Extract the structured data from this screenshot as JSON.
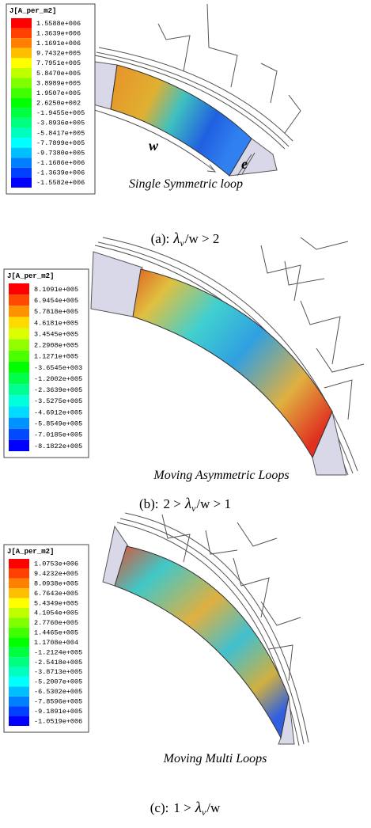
{
  "panels": [
    {
      "legend_title": "J[A_per_m2]",
      "legend_values": [
        "1.5588e+006",
        "1.3639e+006",
        "1.1691e+006",
        "9.7432e+005",
        "7.7951e+005",
        "5.8470e+005",
        "3.8989e+005",
        "1.9507e+005",
        "2.6250e+002",
        "-1.9455e+005",
        "-3.8936e+005",
        "-5.8417e+005",
        "-7.7899e+005",
        "-9.7380e+005",
        "-1.1686e+006",
        "-1.3639e+006",
        "-1.5582e+006"
      ],
      "annotations": [
        "w",
        "e"
      ],
      "label": "Single Symmetric loop",
      "caption": {
        "tag": "(a):",
        "symbol": "λ",
        "subscript": "v",
        "after": "/w > 2"
      }
    },
    {
      "legend_title": "J[A_per_m2]",
      "legend_values": [
        "8.1091e+005",
        "6.9454e+005",
        "5.7818e+005",
        "4.6181e+005",
        "3.4545e+005",
        "2.2908e+005",
        "1.1271e+005",
        "-3.6545e+003",
        "-1.2002e+005",
        "-2.3639e+005",
        "-3.5275e+005",
        "-4.6912e+005",
        "-5.8549e+005",
        "-7.0185e+005",
        "-8.1822e+005"
      ],
      "label": "Moving Asymmetric Loops",
      "caption": {
        "tag": "(b):",
        "before": "2 >",
        "symbol": "λ",
        "subscript": "v",
        "after": "/w > 1"
      }
    },
    {
      "legend_title": "J[A_per_m2]",
      "legend_values": [
        "1.0753e+006",
        "9.4232e+005",
        "8.0938e+005",
        "6.7643e+005",
        "5.4349e+005",
        "4.1054e+005",
        "2.7760e+005",
        "1.4465e+005",
        "1.1708e+004",
        "-1.2124e+005",
        "-2.5418e+005",
        "-3.8713e+005",
        "-5.2007e+005",
        "-6.5302e+005",
        "-7.8596e+005",
        "-9.1891e+005",
        "-1.0519e+006"
      ],
      "label": "Moving Multi Loops",
      "caption": {
        "tag": "(c):",
        "before": "1 >",
        "symbol": "λ",
        "subscript": "v",
        "after": "/w"
      }
    }
  ]
}
